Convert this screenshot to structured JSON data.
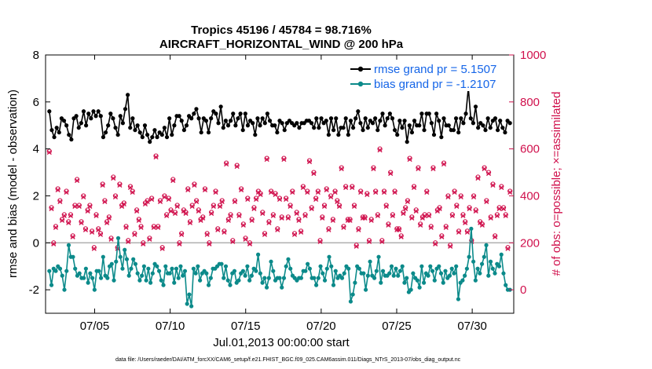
{
  "chart_data": {
    "type": "line",
    "title_line1": "Tropics 45196 / 45784 = 98.716%",
    "title_line2": "AIRCRAFT_HORIZONTAL_WIND @ 200 hPa",
    "xlabel": "Jul.01,2013 00:00:00 start",
    "ylabel_left": "rmse and bias (model - observation)",
    "ylabel_right": "# of obs: o=possible; ×=assimilated",
    "x_range_days": [
      0.75,
      31.75
    ],
    "x_tick_days": [
      4,
      9,
      14,
      19,
      24,
      29
    ],
    "x_tick_labels": [
      "07/05",
      "07/10",
      "07/15",
      "07/20",
      "07/25",
      "07/30"
    ],
    "ylim_left": [
      -3,
      8
    ],
    "yticks_left": [
      "8",
      "6",
      "4",
      "2",
      "0",
      "-2"
    ],
    "ylim_right": [
      -100,
      1000
    ],
    "yticks_right": [
      "1000",
      "800",
      "600",
      "400",
      "200",
      "0"
    ],
    "zero_line": 0,
    "grid": false,
    "legend_position": "top-right",
    "series": [
      {
        "name": "rmse grand pr = 5.1507",
        "axis": "left",
        "color": "#000000",
        "values": [
          5.6,
          4.8,
          4.5,
          4.9,
          4.7,
          5.3,
          5.2,
          5.0,
          4.6,
          4.4,
          5.3,
          5.4,
          4.9,
          5.1,
          5.6,
          5.0,
          5.5,
          5.3,
          5.6,
          5.4,
          5.6,
          5.4,
          4.5,
          4.7,
          5.0,
          5.5,
          5.3,
          4.9,
          4.6,
          5.4,
          5.1,
          5.7,
          6.3,
          4.9,
          5.3,
          4.8,
          5.0,
          4.7,
          4.5,
          5.0,
          4.6,
          4.3,
          4.5,
          4.8,
          4.5,
          4.7,
          4.6,
          4.9,
          4.5,
          5.3,
          4.6,
          5.0,
          5.4,
          5.4,
          5.2,
          4.8,
          5.0,
          5.4,
          5.3,
          5.5,
          5.7,
          5.3,
          4.7,
          5.3,
          5.2,
          4.7,
          5.3,
          5.6,
          5.5,
          5.1,
          5.8,
          4.9,
          5.2,
          5.0,
          5.2,
          5.5,
          5.0,
          5.3,
          5.5,
          4.8,
          5.5,
          5.0,
          5.2,
          5.1,
          4.6,
          5.3,
          5.0,
          5.3,
          5.1,
          5.5,
          5.2,
          5.0,
          5.0,
          4.7,
          5.2,
          5.1,
          4.8,
          5.1,
          5.2,
          5.1,
          5.0,
          5.1,
          4.9,
          5.1,
          5.1,
          5.2,
          5.2,
          5.1,
          4.9,
          5.3,
          4.9,
          5.3,
          5.1,
          5.2,
          4.6,
          5.3,
          4.8,
          5.3,
          4.6,
          4.9,
          4.9,
          5.3,
          4.6,
          5.2,
          4.9,
          5.3,
          5.6,
          5.1,
          4.8,
          5.3,
          4.9,
          5.2,
          5.1,
          5.3,
          4.8,
          5.2,
          5.5,
          5.0,
          5.3,
          5.5,
          5.3,
          4.8,
          4.6,
          5.2,
          4.9,
          5.2,
          4.3,
          5.0,
          4.7,
          5.2,
          5.0,
          5.0,
          5.5,
          4.8,
          5.5,
          5.5,
          5.1,
          4.6,
          5.5,
          5.2,
          4.5,
          5.3,
          5.0,
          5.0,
          4.8,
          4.8,
          5.3,
          4.7,
          5.3,
          5.1,
          5.5,
          6.6,
          5.3,
          5.1,
          5.8,
          4.9,
          5.1,
          5.0,
          4.8,
          5.3,
          4.9,
          5.2,
          5.3,
          4.8,
          5.2,
          4.9,
          4.7,
          5.2,
          5.1
        ]
      },
      {
        "name": "bias grand pr = -1.2107",
        "axis": "left",
        "color": "#0b8a8a",
        "values": [
          -1.2,
          -1.8,
          -1.1,
          -1.2,
          -1.0,
          -1.1,
          -1.4,
          -2.0,
          -1.2,
          -0.1,
          -0.6,
          -0.6,
          -1.1,
          -1.4,
          -1.3,
          -1.5,
          -1.5,
          -1.1,
          -1.7,
          -1.3,
          -1.5,
          -2.0,
          -1.2,
          -1.2,
          -1.5,
          -0.6,
          -1.4,
          -1.5,
          -1.0,
          -0.9,
          -1.6,
          -0.8,
          0.2,
          -0.6,
          -1.1,
          -0.3,
          -0.7,
          -1.4,
          -1.1,
          -0.7,
          -0.9,
          -1.3,
          -1.6,
          -1.4,
          -1.0,
          -1.6,
          -1.1,
          -1.7,
          -1.3,
          -0.9,
          -1.0,
          -1.2,
          -1.6,
          -1.8,
          -1.0,
          -1.3,
          -1.3,
          -1.1,
          -1.7,
          -1.1,
          -1.5,
          -1.0,
          -1.4,
          -1.2,
          -2.6,
          -2.2,
          -2.7,
          -1.1,
          -1.3,
          -1.0,
          -1.6,
          -1.3,
          -1.2,
          -1.3,
          -1.8,
          -1.5,
          -1.1,
          -1.1,
          -1.0,
          -0.9,
          -0.9,
          -1.5,
          -1.0,
          -1.6,
          -1.8,
          -1.3,
          -1.2,
          -1.7,
          -1.6,
          -1.3,
          -1.2,
          -1.4,
          -1.0,
          -1.6,
          -1.4,
          -1.1,
          -1.2,
          -0.5,
          -1.3,
          -1.7,
          -1.5,
          -1.9,
          -1.5,
          -0.8,
          -1.2,
          -1.6,
          -1.5,
          -1.5,
          -1.9,
          -1.5,
          -1.0,
          -0.7,
          -1.1,
          -1.4,
          -1.5,
          -1.6,
          -1.5,
          -1.5,
          -1.2,
          -1.2,
          -0.9,
          -1.1,
          -1.5,
          -1.5,
          -1.8,
          -1.5,
          -1.0,
          -1.3,
          -1.6,
          -1.1,
          -0.6,
          -1.0,
          -1.8,
          -1.2,
          -1.5,
          -1.4,
          -1.5,
          -1.3,
          -1.0,
          -1.1,
          -2.5,
          -2.2,
          -1.7,
          -1.0,
          -1.1,
          -1.3,
          -1.3,
          -2.0,
          -1.4,
          -0.8,
          -1.4,
          -1.5,
          -1.2,
          -0.6,
          -1.7,
          -1.2,
          -1.4,
          -1.4,
          -1.3,
          -1.0,
          -1.4,
          -1.1,
          -1.4,
          -1.2,
          -1.0,
          -1.7,
          -1.5,
          -2.1,
          -2.0,
          -1.3,
          -1.5,
          -1.6,
          -1.9,
          -1.0,
          -1.7,
          -1.3,
          -1.4,
          -1.0,
          -1.2,
          -1.6,
          -1.1,
          -1.0,
          -1.3,
          -1.7,
          -1.2,
          -1.5,
          -1.4,
          -1.1,
          -1.3,
          -1.0,
          -2.4,
          -1.7,
          -1.6,
          -1.4,
          -1.1,
          -0.6,
          0.6,
          -0.8,
          -1.6,
          -1.1,
          -1.3,
          -0.9,
          -0.6,
          -0.1,
          -1.4,
          -0.8,
          -1.1,
          -1.3,
          -0.9,
          -1.0,
          -0.5,
          -1.3,
          -1.8,
          -2.0,
          -2.0
        ]
      },
      {
        "name": "possible obs",
        "axis": "right",
        "color": "#d0104c",
        "marker": "o",
        "values": [
          590,
          350,
          200,
          270,
          430,
          380,
          300,
          320,
          420,
          290,
          320,
          230,
          360,
          470,
          360,
          290,
          400,
          260,
          340,
          360,
          250,
          180,
          320,
          260,
          240,
          450,
          380,
          290,
          310,
          220,
          480,
          400,
          180,
          450,
          360,
          370,
          270,
          210,
          440,
          420,
          240,
          340,
          300,
          270,
          200,
          370,
          380,
          220,
          390,
          270,
          570,
          270,
          380,
          180,
          400,
          320,
          390,
          340,
          470,
          330,
          360,
          200,
          240,
          340,
          330,
          430,
          290,
          360,
          450,
          380,
          340,
          300,
          310,
          430,
          240,
          200,
          330,
          360,
          420,
          260,
          360,
          380,
          250,
          540,
          300,
          320,
          210,
          380,
          530,
          320,
          430,
          280,
          220,
          390,
          200,
          300,
          350,
          390,
          420,
          410,
          330,
          240,
          560,
          290,
          420,
          320,
          410,
          260,
          390,
          310,
          560,
          390,
          310,
          360,
          420,
          240,
          330,
          300,
          250,
          440,
          320,
          420,
          550,
          350,
          500,
          390,
          420,
          210,
          310,
          360,
          430,
          260,
          400,
          300,
          420,
          380,
          360,
          520,
          270,
          440,
          300,
          300,
          440,
          360,
          190,
          260,
          420,
          310,
          310,
          410,
          210,
          300,
          520,
          420,
          320,
          600,
          210,
          420,
          360,
          280,
          500,
          320,
          420,
          260,
          260,
          230,
          330,
          350,
          380,
          560,
          310,
          440,
          340,
          520,
          280,
          310,
          320,
          420,
          320,
          270,
          520,
          200,
          340,
          350,
          230,
          540,
          270,
          400,
          190,
          320,
          420,
          360,
          250,
          400,
          320,
          290,
          250,
          350,
          210,
          400,
          340,
          480,
          290,
          280,
          520,
          380,
          500,
          310,
          450,
          230,
          320,
          350,
          440,
          350,
          320,
          180,
          420
        ]
      },
      {
        "name": "assimilated obs",
        "axis": "right",
        "color": "#d0104c",
        "marker": "x",
        "values": [
          585,
          345,
          195,
          265,
          425,
          375,
          295,
          315,
          415,
          285,
          315,
          225,
          355,
          465,
          355,
          285,
          395,
          255,
          335,
          355,
          245,
          175,
          315,
          255,
          235,
          445,
          375,
          285,
          305,
          215,
          475,
          395,
          175,
          445,
          355,
          365,
          265,
          205,
          435,
          415,
          235,
          335,
          295,
          265,
          195,
          365,
          375,
          215,
          385,
          265,
          565,
          265,
          375,
          175,
          395,
          315,
          385,
          335,
          465,
          325,
          355,
          195,
          235,
          335,
          325,
          425,
          285,
          355,
          445,
          375,
          335,
          295,
          305,
          425,
          235,
          195,
          325,
          355,
          415,
          255,
          355,
          375,
          245,
          535,
          295,
          315,
          205,
          375,
          525,
          315,
          425,
          275,
          215,
          385,
          195,
          295,
          345,
          385,
          415,
          405,
          325,
          235,
          555,
          285,
          415,
          315,
          405,
          255,
          385,
          305,
          555,
          385,
          305,
          355,
          415,
          235,
          325,
          295,
          245,
          435,
          315,
          415,
          545,
          345,
          495,
          385,
          415,
          205,
          305,
          355,
          425,
          255,
          395,
          295,
          415,
          375,
          355,
          515,
          265,
          435,
          295,
          295,
          435,
          355,
          185,
          255,
          415,
          305,
          305,
          405,
          205,
          295,
          515,
          415,
          315,
          595,
          205,
          415,
          355,
          275,
          495,
          315,
          415,
          255,
          255,
          225,
          325,
          345,
          375,
          555,
          305,
          435,
          335,
          515,
          275,
          305,
          315,
          415,
          315,
          265,
          515,
          195,
          335,
          345,
          225,
          535,
          265,
          395,
          185,
          315,
          415,
          355,
          245,
          395,
          315,
          285,
          245,
          345,
          205,
          395,
          335,
          475,
          285,
          275,
          515,
          375,
          495,
          305,
          445,
          225,
          315,
          345,
          435,
          345,
          315,
          175,
          415
        ]
      }
    ],
    "footnote": "data file: /Users/raeder/DAI/ATM_forcXX/CAM6_setup/f.e21.FHIST_BGC.f09_025.CAM6assim.011/Diags_NTrS_2013-07/obs_diag_output.nc"
  },
  "colors": {
    "rmse": "#000000",
    "bias": "#0b8a8a",
    "obs": "#d0104c",
    "legend_text": "#1565e8",
    "zero_line": "#b0b0b0"
  }
}
